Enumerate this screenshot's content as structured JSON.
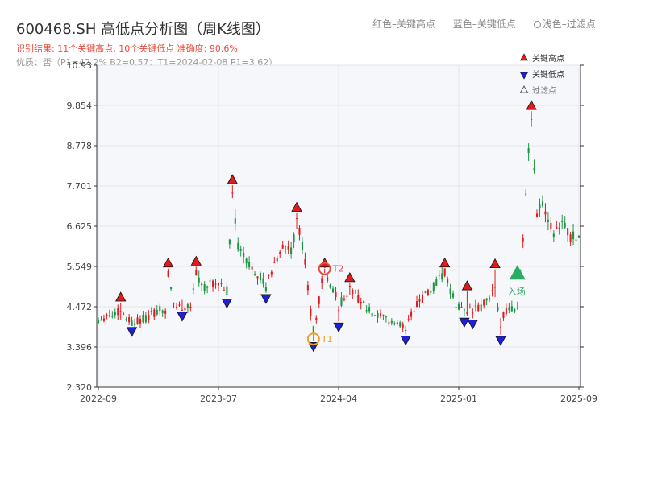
{
  "header": {
    "title": "600468.SH 高低点分析图（周K线图）",
    "subtitle_result": "识别结果: 11个关键高点, 10个关键低点  准确度: 90.6%",
    "subtitle_quality": "优质：否（P1=42.2%  B2=0.57；T1=2024-02-08 P1=3.62）",
    "legend_red": "红色–关键高点",
    "legend_blue": "蓝色–关键低点",
    "legend_hollow": "浅色–过滤点"
  },
  "colors": {
    "up": "#e31a1c",
    "down": "#1a9641",
    "high_marker": "#e31a1c",
    "low_marker": "#1f1fd6",
    "annotation_t1": "#f0a020",
    "annotation_t2": "#e74c3c",
    "entry": "#27ae60",
    "plot_bg": "#f5f7fa"
  },
  "chart_data": {
    "type": "candlestick",
    "y_ticks": [
      "2.320",
      "3.396",
      "4.472",
      "5.549",
      "6.625",
      "7.701",
      "8.778",
      "9.854",
      "10.93"
    ],
    "ylim": [
      2.32,
      10.93
    ],
    "x_ticks": [
      {
        "label": "2022-09",
        "index": 0
      },
      {
        "label": "2023-07",
        "index": 43
      },
      {
        "label": "2024-04",
        "index": 86
      },
      {
        "label": "2025-01",
        "index": 129
      },
      {
        "label": "2025-09",
        "index": 172
      }
    ],
    "bars": 173,
    "anchors": [
      [
        0,
        4.15
      ],
      [
        8,
        4.35
      ],
      [
        12,
        4.05
      ],
      [
        18,
        4.2
      ],
      [
        22,
        4.4
      ],
      [
        24,
        4.35
      ],
      [
        25,
        5.3
      ],
      [
        27,
        4.55
      ],
      [
        30,
        4.45
      ],
      [
        33,
        4.55
      ],
      [
        35,
        5.35
      ],
      [
        38,
        5.0
      ],
      [
        43,
        5.1
      ],
      [
        46,
        4.9
      ],
      [
        48,
        7.55
      ],
      [
        50,
        6.1
      ],
      [
        53,
        5.7
      ],
      [
        58,
        5.3
      ],
      [
        60,
        5.0
      ],
      [
        63,
        5.6
      ],
      [
        66,
        6.1
      ],
      [
        69,
        5.9
      ],
      [
        71,
        6.8
      ],
      [
        74,
        5.7
      ],
      [
        76,
        4.3
      ],
      [
        77,
        3.85
      ],
      [
        78,
        4.2
      ],
      [
        80,
        5.1
      ],
      [
        81,
        5.45
      ],
      [
        83,
        5.0
      ],
      [
        85,
        4.75
      ],
      [
        86,
        4.5
      ],
      [
        90,
        4.95
      ],
      [
        92,
        4.8
      ],
      [
        96,
        4.4
      ],
      [
        100,
        4.2
      ],
      [
        106,
        4.05
      ],
      [
        110,
        3.9
      ],
      [
        112,
        4.3
      ],
      [
        115,
        4.6
      ],
      [
        120,
        5.0
      ],
      [
        124,
        5.35
      ],
      [
        128,
        4.5
      ],
      [
        132,
        4.4
      ],
      [
        134,
        4.35
      ],
      [
        137,
        4.45
      ],
      [
        142,
        4.9
      ],
      [
        143,
        4.35
      ],
      [
        144,
        4.05
      ],
      [
        146,
        4.4
      ],
      [
        150,
        4.5
      ],
      [
        152,
        6.3
      ],
      [
        154,
        8.5
      ],
      [
        155,
        9.3
      ],
      [
        157,
        7.0
      ],
      [
        159,
        7.3
      ],
      [
        163,
        6.5
      ],
      [
        166,
        6.8
      ],
      [
        169,
        6.3
      ],
      [
        172,
        6.45
      ]
    ],
    "highs": [
      {
        "index": 8,
        "price": 4.58
      },
      {
        "index": 25,
        "price": 5.49
      },
      {
        "index": 35,
        "price": 5.54
      },
      {
        "index": 48,
        "price": 7.72
      },
      {
        "index": 71,
        "price": 6.98
      },
      {
        "index": 81,
        "price": 5.49
      },
      {
        "index": 90,
        "price": 5.1
      },
      {
        "index": 124,
        "price": 5.49
      },
      {
        "index": 132,
        "price": 4.88
      },
      {
        "index": 142,
        "price": 5.47
      },
      {
        "index": 155,
        "price": 9.7
      }
    ],
    "lows": [
      {
        "index": 12,
        "price": 3.96
      },
      {
        "index": 30,
        "price": 4.37
      },
      {
        "index": 46,
        "price": 4.72
      },
      {
        "index": 60,
        "price": 4.84
      },
      {
        "index": 77,
        "price": 3.56
      },
      {
        "index": 86,
        "price": 4.08
      },
      {
        "index": 110,
        "price": 3.73
      },
      {
        "index": 131,
        "price": 4.21
      },
      {
        "index": 134,
        "price": 4.16
      },
      {
        "index": 144,
        "price": 3.72
      }
    ],
    "legend": [
      "关键高点",
      "关键低点",
      "过滤点"
    ],
    "annotations": [
      {
        "label": "T1",
        "index": 77,
        "price": 3.61
      },
      {
        "label": "T2",
        "index": 81,
        "price": 5.49
      },
      {
        "label": "入场",
        "index": 150,
        "price": 5.35
      }
    ]
  }
}
